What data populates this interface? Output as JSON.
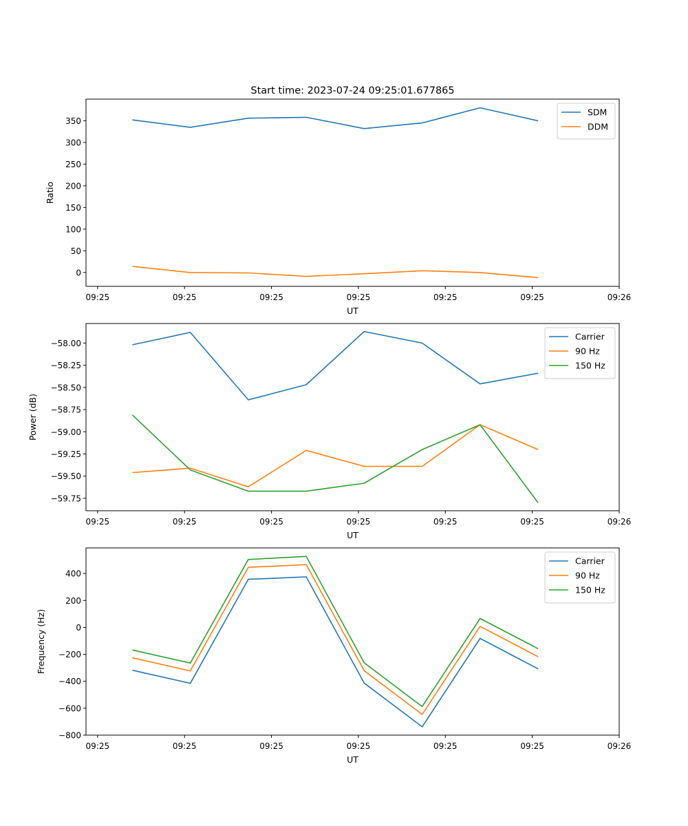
{
  "figure": {
    "title": "Start time: 2023-07-24 09:25:01.677865"
  },
  "colors": {
    "blue": "#1f77b4",
    "orange": "#ff7f0e",
    "green": "#2ca02c"
  },
  "chart_data": [
    {
      "type": "line",
      "title": "Start time: 2023-07-24 09:25:01.677865",
      "xlabel": "UT",
      "ylabel": "Ratio",
      "x": [
        1,
        2,
        3,
        4,
        5,
        6,
        7,
        8
      ],
      "xlim": [
        0.2,
        9.4
      ],
      "xticks": [
        0.4,
        1.9,
        3.4,
        4.9,
        6.4,
        7.9,
        9.4
      ],
      "xtick_labels": [
        "09:25",
        "09:25",
        "09:25",
        "09:25",
        "09:25",
        "09:25",
        "09:26"
      ],
      "ylim": [
        -32,
        400
      ],
      "yticks": [
        0,
        50,
        100,
        150,
        200,
        250,
        300,
        350
      ],
      "ytick_labels": [
        "0",
        "50",
        "100",
        "150",
        "200",
        "250",
        "300",
        "350"
      ],
      "legend_position": "top-right",
      "series": [
        {
          "name": "SDM",
          "color": "#1f77b4",
          "values": [
            352,
            335,
            356,
            358,
            332,
            345,
            380,
            350
          ]
        },
        {
          "name": "DDM",
          "color": "#ff7f0e",
          "values": [
            14,
            0,
            -1,
            -9,
            -3,
            4,
            0,
            -12
          ]
        }
      ]
    },
    {
      "type": "line",
      "title": "",
      "xlabel": "UT",
      "ylabel": "Power (dB)",
      "x": [
        1,
        2,
        3,
        4,
        5,
        6,
        7,
        8
      ],
      "xlim": [
        0.2,
        9.4
      ],
      "xticks": [
        0.4,
        1.9,
        3.4,
        4.9,
        6.4,
        7.9,
        9.4
      ],
      "xtick_labels": [
        "09:25",
        "09:25",
        "09:25",
        "09:25",
        "09:25",
        "09:25",
        "09:26"
      ],
      "ylim": [
        -59.89,
        -57.78
      ],
      "yticks": [
        -58.0,
        -58.25,
        -58.5,
        -58.75,
        -59.0,
        -59.25,
        -59.5,
        -59.75
      ],
      "ytick_labels": [
        "−58.00",
        "−58.25",
        "−58.50",
        "−58.75",
        "−59.00",
        "−59.25",
        "−59.50",
        "−59.75"
      ],
      "legend_position": "top-right",
      "series": [
        {
          "name": "Carrier",
          "color": "#1f77b4",
          "values": [
            -58.02,
            -57.88,
            -58.64,
            -58.47,
            -57.87,
            -58.0,
            -58.46,
            -58.34
          ]
        },
        {
          "name": "90 Hz",
          "color": "#ff7f0e",
          "values": [
            -59.46,
            -59.41,
            -59.62,
            -59.21,
            -59.39,
            -59.39,
            -58.92,
            -59.2
          ]
        },
        {
          "name": "150 Hz",
          "color": "#2ca02c",
          "values": [
            -58.81,
            -59.43,
            -59.67,
            -59.67,
            -59.58,
            -59.2,
            -58.92,
            -59.8
          ]
        }
      ]
    },
    {
      "type": "line",
      "title": "",
      "xlabel": "UT",
      "ylabel": "Frequency (Hz)",
      "x": [
        1,
        2,
        3,
        4,
        5,
        6,
        7,
        8
      ],
      "xlim": [
        0.2,
        9.4
      ],
      "xticks": [
        0.4,
        1.9,
        3.4,
        4.9,
        6.4,
        7.9,
        9.4
      ],
      "xtick_labels": [
        "09:25",
        "09:25",
        "09:25",
        "09:25",
        "09:25",
        "09:25",
        "09:26"
      ],
      "ylim": [
        -800,
        590
      ],
      "yticks": [
        -800,
        -600,
        -400,
        -200,
        0,
        200,
        400
      ],
      "ytick_labels": [
        "−800",
        "−600",
        "−400",
        "−200",
        "0",
        "200",
        "400"
      ],
      "legend_position": "top-right",
      "series": [
        {
          "name": "Carrier",
          "color": "#1f77b4",
          "values": [
            -318,
            -415,
            357,
            375,
            -413,
            -738,
            -82,
            -308
          ]
        },
        {
          "name": "90 Hz",
          "color": "#ff7f0e",
          "values": [
            -226,
            -323,
            446,
            466,
            -321,
            -646,
            8,
            -218
          ]
        },
        {
          "name": "150 Hz",
          "color": "#2ca02c",
          "values": [
            -168,
            -265,
            504,
            527,
            -263,
            -588,
            66,
            -158
          ]
        }
      ]
    }
  ]
}
